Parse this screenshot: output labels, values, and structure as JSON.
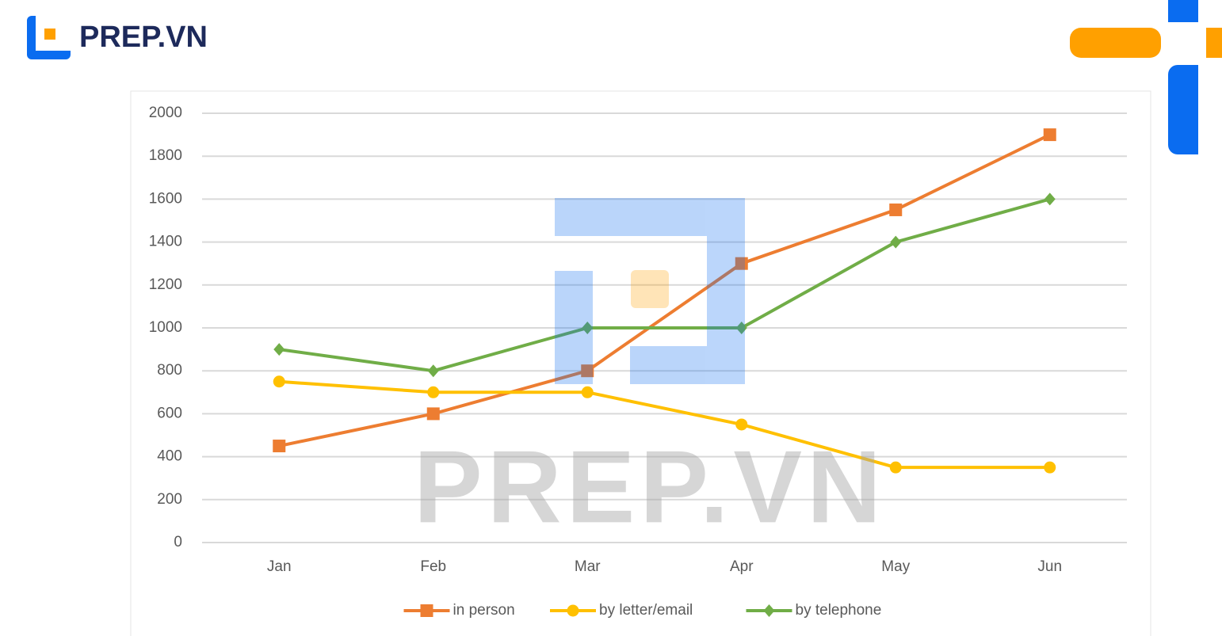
{
  "logo": "PREP.VN",
  "watermark": "PREP.VN",
  "chart_data": {
    "type": "line",
    "categories": [
      "Jan",
      "Feb",
      "Mar",
      "Apr",
      "May",
      "Jun"
    ],
    "series": [
      {
        "name": "in person",
        "color": "#ed7d31",
        "marker": "square",
        "values": [
          450,
          600,
          800,
          1300,
          1550,
          1900
        ]
      },
      {
        "name": "by letter/email",
        "color": "#ffc000",
        "marker": "circle",
        "values": [
          750,
          700,
          700,
          550,
          350,
          350
        ]
      },
      {
        "name": "by telephone",
        "color": "#70ad47",
        "marker": "diamond",
        "values": [
          900,
          800,
          1000,
          1000,
          1400,
          1600
        ]
      }
    ],
    "ylim": [
      0,
      2000
    ],
    "yticks": [
      0,
      200,
      400,
      600,
      800,
      1000,
      1200,
      1400,
      1600,
      1800,
      2000
    ],
    "grid": true,
    "legend": "bottom"
  }
}
